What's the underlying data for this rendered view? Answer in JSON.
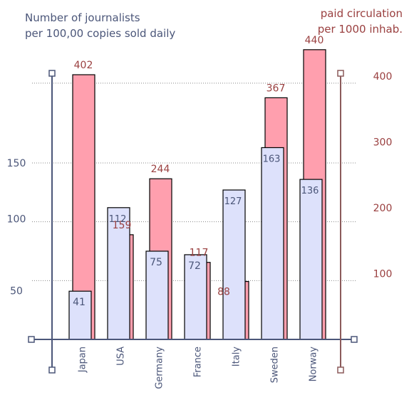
{
  "chart_data": {
    "type": "bar",
    "title_left": "Number of journalists\nper 100,00 copies sold daily",
    "title_right": "paid circulation\nper 1000 inhab.",
    "categories": [
      "Japan",
      "USA",
      "Germany",
      "France",
      "Italy",
      "Sweden",
      "Norway"
    ],
    "series": [
      {
        "axis": "left",
        "color": "#dde1fb",
        "label_color": "#4b5679",
        "values": [
          41,
          112,
          75,
          72,
          127,
          163,
          136
        ]
      },
      {
        "axis": "right",
        "color": "#ff9fae",
        "label_color": "#9a4040",
        "values": [
          402,
          159,
          244,
          117,
          88,
          367,
          440
        ]
      }
    ],
    "left_axis": {
      "ticks": [
        50,
        100,
        150
      ],
      "color": "#4b5679"
    },
    "right_axis": {
      "ticks": [
        100,
        200,
        300,
        400
      ],
      "color": "#9a4040"
    },
    "grid": true
  }
}
